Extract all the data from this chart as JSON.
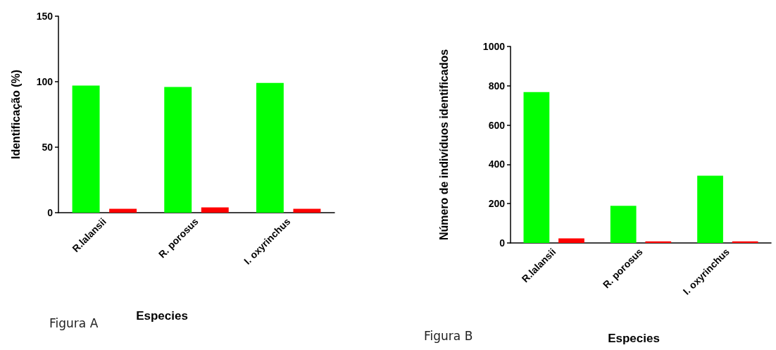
{
  "chart_data": [
    {
      "type": "bar",
      "xlabel": "Especies",
      "ylabel": "Identificação (%)",
      "categories": [
        "R.lalansii",
        "R. porosus",
        "I. oxyrinchus"
      ],
      "series": [
        {
          "color": "#00ff00",
          "values": [
            97,
            96,
            99
          ]
        },
        {
          "color": "#ff0000",
          "values": [
            3,
            4,
            3
          ]
        }
      ],
      "ylim": [
        0,
        150
      ],
      "yticks": [
        0,
        50,
        100,
        150
      ],
      "grid": false,
      "annotations": [
        "Figura A"
      ]
    },
    {
      "type": "bar",
      "xlabel": "Especies",
      "ylabel": "Número de indivíduos identificados",
      "categories": [
        "R.lalansii",
        "R. porosus",
        "I. oxyrinchus"
      ],
      "series": [
        {
          "color": "#00ff00",
          "values": [
            768,
            189,
            342
          ]
        },
        {
          "color": "#ff0000",
          "values": [
            23,
            8,
            8
          ]
        }
      ],
      "ylim": [
        0,
        1000
      ],
      "yticks": [
        0,
        200,
        400,
        600,
        800,
        1000
      ],
      "grid": false,
      "annotations": [
        "Figura B"
      ]
    }
  ]
}
